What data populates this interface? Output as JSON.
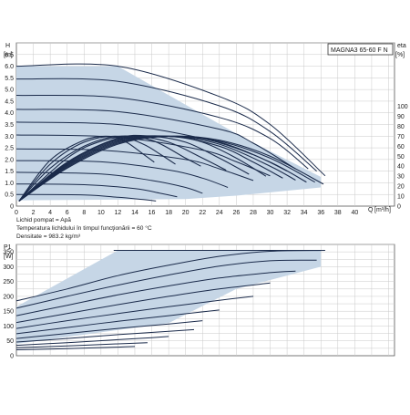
{
  "chart_data": [
    {
      "type": "line",
      "title": "",
      "model_label": "MAGNA3 65-60 F N",
      "ylabel": "H",
      "yunit": "[m]",
      "xlabel": "Q",
      "xunit": "[m³/h]",
      "y2label": "eta",
      "y2unit": "[%]",
      "xlim": [
        0,
        44
      ],
      "ylim": [
        0,
        7
      ],
      "y2lim": [
        0,
        100
      ],
      "x_ticks": [
        "0",
        "2",
        "4",
        "6",
        "8",
        "10",
        "12",
        "14",
        "16",
        "18",
        "20",
        "22",
        "24",
        "26",
        "28",
        "30",
        "32",
        "34",
        "36",
        "38",
        "40"
      ],
      "y_ticks": [
        "0",
        "0.5",
        "1.0",
        "1.5",
        "2.0",
        "2.5",
        "3.0",
        "3.5",
        "4.0",
        "4.5",
        "5.0",
        "5.5",
        "6.0",
        "6.5"
      ],
      "y2_ticks": [
        "0",
        "10",
        "20",
        "30",
        "40",
        "50",
        "60",
        "70",
        "80",
        "90",
        "100"
      ],
      "grid": true,
      "operating_area_color": "#c6d6e6",
      "curve_color": "#1b2b4b",
      "operating_area": [
        [
          0,
          6.0
        ],
        [
          12,
          6.0
        ],
        [
          27,
          2.9
        ],
        [
          36,
          1.25
        ],
        [
          36,
          0.8
        ],
        [
          26,
          0.45
        ],
        [
          20,
          0.3
        ],
        [
          0,
          0.25
        ]
      ],
      "head_curves": [
        {
          "x": [
            0,
            12,
            24,
            30,
            36.5
          ],
          "y": [
            6.0,
            6.0,
            4.7,
            3.5,
            1.3
          ]
        },
        {
          "x": [
            0,
            12,
            24,
            30,
            35.5
          ],
          "y": [
            5.45,
            5.35,
            4.3,
            3.2,
            1.5
          ]
        },
        {
          "x": [
            0,
            12,
            24,
            30,
            34.5
          ],
          "y": [
            4.75,
            4.65,
            3.8,
            2.9,
            1.6
          ]
        },
        {
          "x": [
            0,
            12,
            24,
            28,
            33
          ],
          "y": [
            4.15,
            4.05,
            3.3,
            2.7,
            1.6
          ]
        },
        {
          "x": [
            0,
            12,
            22,
            28,
            32
          ],
          "y": [
            3.6,
            3.5,
            2.9,
            2.2,
            1.5
          ]
        },
        {
          "x": [
            0,
            12,
            22,
            26,
            30
          ],
          "y": [
            3.05,
            2.95,
            2.4,
            1.9,
            1.3
          ]
        },
        {
          "x": [
            0,
            10,
            20,
            24,
            28
          ],
          "y": [
            2.45,
            2.4,
            2.0,
            1.6,
            1.1
          ]
        },
        {
          "x": [
            0,
            10,
            18,
            22,
            25
          ],
          "y": [
            1.95,
            1.9,
            1.55,
            1.2,
            0.8
          ]
        },
        {
          "x": [
            0,
            10,
            16,
            20,
            22
          ],
          "y": [
            1.45,
            1.38,
            1.1,
            0.8,
            0.55
          ]
        },
        {
          "x": [
            0,
            8,
            14,
            17,
            19
          ],
          "y": [
            0.95,
            0.92,
            0.75,
            0.55,
            0.4
          ]
        },
        {
          "x": [
            0,
            8,
            12,
            15,
            16.5
          ],
          "y": [
            0.5,
            0.48,
            0.38,
            0.28,
            0.22
          ]
        }
      ],
      "efficiency_curves": [
        {
          "x": [
            0.3,
            6,
            12,
            18,
            24,
            30,
            36.3
          ],
          "eta": [
            5,
            38,
            62,
            70,
            66,
            50,
            22
          ]
        },
        {
          "x": [
            0.3,
            6,
            12,
            18,
            24,
            30,
            35.3
          ],
          "eta": [
            5,
            39,
            63,
            70,
            65,
            48,
            24
          ]
        },
        {
          "x": [
            0.3,
            6,
            12,
            18,
            24,
            30,
            34.3
          ],
          "eta": [
            5,
            40,
            64,
            70,
            64,
            44,
            24
          ]
        },
        {
          "x": [
            0.3,
            6,
            12,
            18,
            24,
            30,
            33
          ],
          "eta": [
            5,
            41,
            65,
            70,
            62,
            40,
            26
          ]
        },
        {
          "x": [
            0.3,
            6,
            12,
            18,
            24,
            28,
            31.5
          ],
          "eta": [
            5,
            42,
            66,
            70,
            60,
            44,
            28
          ]
        },
        {
          "x": [
            0.3,
            6,
            12,
            18,
            22,
            26,
            29.5
          ],
          "eta": [
            5,
            43,
            67,
            70,
            64,
            48,
            30
          ]
        },
        {
          "x": [
            0.3,
            6,
            12,
            16,
            20,
            24,
            27.5
          ],
          "eta": [
            5,
            44,
            68,
            70,
            64,
            48,
            32
          ]
        },
        {
          "x": [
            0.3,
            6,
            10,
            14,
            18,
            22,
            24.8
          ],
          "eta": [
            5,
            48,
            65,
            70,
            64,
            48,
            36
          ]
        },
        {
          "x": [
            0.3,
            4,
            8,
            12,
            16,
            20,
            21.8
          ],
          "eta": [
            5,
            38,
            60,
            70,
            66,
            48,
            40
          ]
        },
        {
          "x": [
            0.3,
            4,
            8,
            12,
            15,
            17,
            18.8
          ],
          "eta": [
            5,
            42,
            64,
            70,
            62,
            52,
            42
          ]
        },
        {
          "x": [
            0.3,
            4,
            8,
            11,
            13,
            15,
            16.3
          ],
          "eta": [
            5,
            46,
            66,
            70,
            64,
            52,
            44
          ]
        }
      ],
      "notes": [
        "Lichid pompat = Apă",
        "Temperatura lichidului în timpul funcţionării = 60 °C",
        "Densitate = 983.2 kg/m³"
      ]
    },
    {
      "type": "line",
      "title": "",
      "ylabel": "P1",
      "yunit": "[W]",
      "xlim": [
        0,
        44
      ],
      "ylim": [
        0,
        375
      ],
      "y_ticks": [
        "0",
        "50",
        "100",
        "150",
        "200",
        "250",
        "300",
        "350"
      ],
      "grid": true,
      "operating_area": [
        [
          0,
          165
        ],
        [
          12,
          355
        ],
        [
          36,
          355
        ],
        [
          36,
          300
        ],
        [
          26,
          225
        ],
        [
          18,
          110
        ],
        [
          0,
          40
        ]
      ],
      "power_curves": [
        {
          "x": [
            0,
            6,
            12,
            18,
            24,
            30,
            36.5
          ],
          "y": [
            185,
            225,
            270,
            305,
            335,
            352,
            355
          ]
        },
        {
          "x": [
            0,
            6,
            12,
            18,
            24,
            30,
            35.5
          ],
          "y": [
            160,
            200,
            238,
            272,
            302,
            320,
            322
          ]
        },
        {
          "x": [
            0,
            6,
            12,
            18,
            24,
            30,
            33
          ],
          "y": [
            135,
            170,
            205,
            235,
            262,
            280,
            285
          ]
        },
        {
          "x": [
            0,
            6,
            12,
            18,
            24,
            30
          ],
          "y": [
            112,
            142,
            172,
            200,
            225,
            245
          ]
        },
        {
          "x": [
            0,
            6,
            12,
            18,
            24,
            28
          ],
          "y": [
            92,
            118,
            142,
            165,
            187,
            200
          ]
        },
        {
          "x": [
            0,
            6,
            12,
            18,
            24
          ],
          "y": [
            74,
            95,
            116,
            135,
            154
          ]
        },
        {
          "x": [
            0,
            6,
            12,
            18,
            22
          ],
          "y": [
            58,
            75,
            92,
            107,
            118
          ]
        },
        {
          "x": [
            0,
            6,
            12,
            18,
            21
          ],
          "y": [
            46,
            58,
            71,
            82,
            88
          ]
        },
        {
          "x": [
            0,
            6,
            12,
            16,
            18
          ],
          "y": [
            35,
            44,
            54,
            61,
            65
          ]
        },
        {
          "x": [
            0,
            6,
            12,
            15.5
          ],
          "y": [
            27,
            33,
            40,
            44
          ]
        },
        {
          "x": [
            0,
            6,
            12,
            14
          ],
          "y": [
            20,
            24,
            29,
            31
          ]
        }
      ],
      "band_top": [
        [
          11.5,
          355
        ],
        [
          13,
          355
        ],
        [
          16,
          355
        ],
        [
          22.5,
          355
        ],
        [
          28,
          355
        ],
        [
          35,
          355
        ],
        [
          36,
          355
        ]
      ]
    }
  ]
}
